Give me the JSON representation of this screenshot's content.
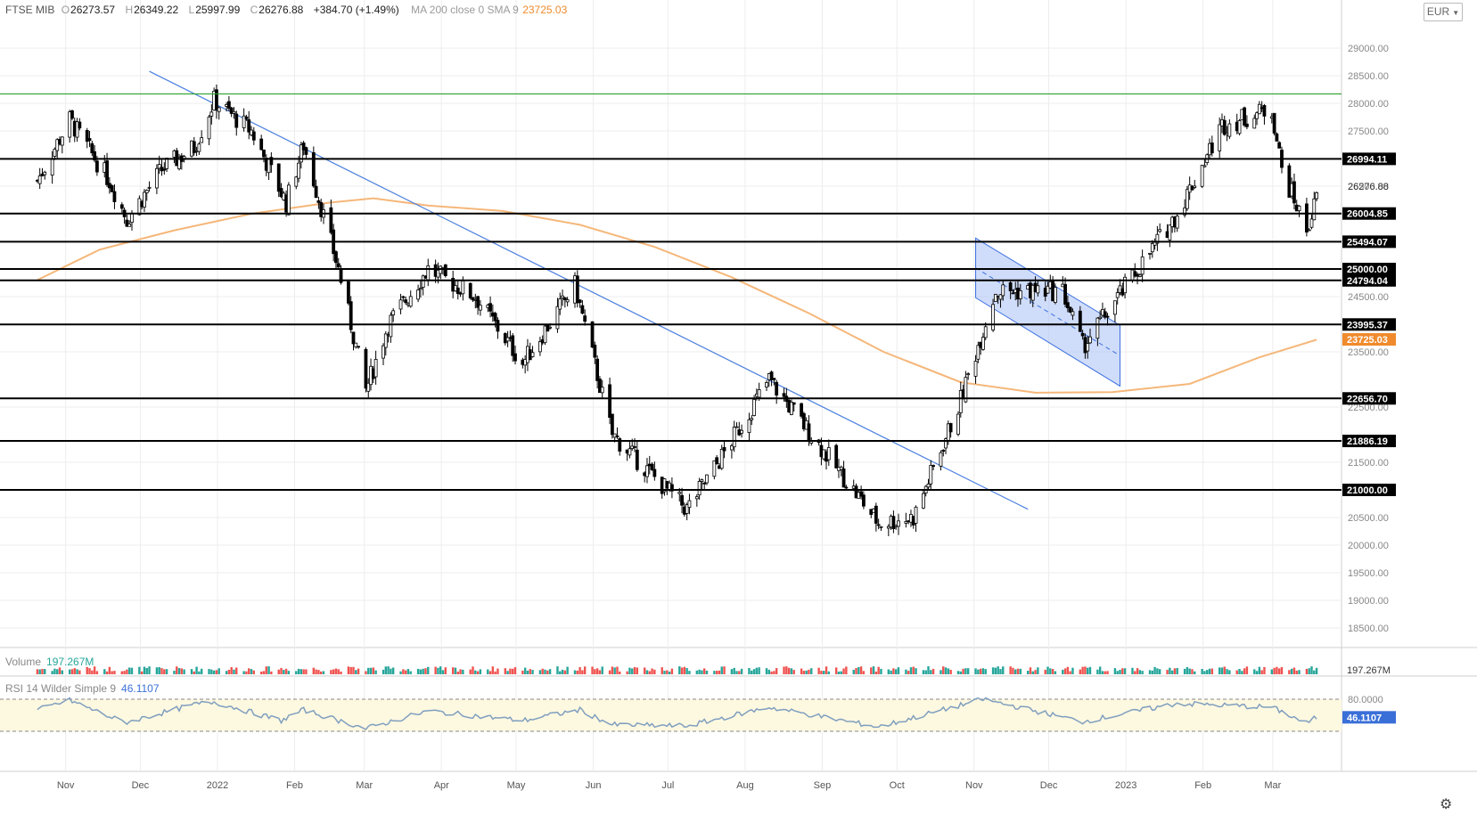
{
  "header": {
    "symbol": "FTSE MIB",
    "open_label": "O",
    "open": "26273.57",
    "high_label": "H",
    "high": "26349.22",
    "low_label": "L",
    "low": "25997.99",
    "close_label": "C",
    "close": "26276.88",
    "change": "+384.70 (+1.49%)",
    "ma_label": "MA 200 close 0 SMA 9",
    "ma_value": "23725.03"
  },
  "currency": "EUR",
  "volume_panel": {
    "label": "Volume",
    "value": "197.267M",
    "axis_badge": "197.267M"
  },
  "rsi_panel": {
    "label": "RSI 14 Wilder Simple 9",
    "value": "46.1107",
    "axis_badge": "46.1107",
    "ticks": [
      "80.0000"
    ]
  },
  "x_labels": [
    "Nov",
    "Dec",
    "2022",
    "Feb",
    "Mar",
    "Apr",
    "May",
    "Jun",
    "Jul",
    "Aug",
    "Sep",
    "Oct",
    "Nov",
    "Dec",
    "2023",
    "Feb",
    "Mar"
  ],
  "colors": {
    "up": "#26a69a",
    "down": "#ef5350",
    "candle": "#000000",
    "ma": "#f5b77a",
    "trendline": "#4a7fe0",
    "resistance": "#2ca02c",
    "channel": "#a9c1f5",
    "rsi_line": "#7f9fbf",
    "rsi_band": "#fdf8e0",
    "ma_badge": "#f08a2c"
  },
  "icons": {
    "settings": "gear-icon",
    "dropdown": "chevron-down-icon"
  },
  "chart_data": {
    "type": "candlestick",
    "title": "FTSE MIB",
    "y_ticks": [
      "29000.00",
      "28500.00",
      "28000.00",
      "27500.00",
      "26500.00",
      "25500.00",
      "24500.00",
      "23500.00",
      "22500.00",
      "21500.00",
      "21000.00",
      "20500.00",
      "20000.00",
      "19500.00",
      "19000.00",
      "18500.00"
    ],
    "ylim": [
      18300,
      29600
    ],
    "current_price": "26276.88",
    "horizontal_levels": [
      {
        "value": 28170,
        "color": "green",
        "label": null
      },
      {
        "value": 26994.11,
        "label": "26994.11"
      },
      {
        "value": 26004.85,
        "label": "26004.85"
      },
      {
        "value": 25494.07,
        "label": "25494.07"
      },
      {
        "value": 25000.0,
        "label": "25000.00"
      },
      {
        "value": 24794.04,
        "label": "24794.04"
      },
      {
        "value": 23995.37,
        "label": "23995.37"
      },
      {
        "value": 22656.7,
        "label": "22656.70"
      },
      {
        "value": 21886.19,
        "label": "21886.19"
      },
      {
        "value": 21000.0,
        "label": "21000.00"
      }
    ],
    "ma_badge": "23725.03",
    "trendline": [
      {
        "date": "2021-12-10",
        "value": 28580
      },
      {
        "date": "2022-11-28",
        "value": 20650
      }
    ],
    "channel": {
      "upper": [
        {
          "date": "2022-11-07",
          "value": 25560
        },
        {
          "date": "2023-01-04",
          "value": 23980
        }
      ],
      "lower": [
        {
          "date": "2022-11-07",
          "value": 24480
        },
        {
          "date": "2023-01-04",
          "value": 22880
        }
      ]
    },
    "ma200": [
      {
        "date": "2021-10-26",
        "value": 24800
      },
      {
        "date": "2021-11-20",
        "value": 25350
      },
      {
        "date": "2021-12-20",
        "value": 25700
      },
      {
        "date": "2022-01-20",
        "value": 26000
      },
      {
        "date": "2022-02-20",
        "value": 26200
      },
      {
        "date": "2022-03-10",
        "value": 26280
      },
      {
        "date": "2022-04-01",
        "value": 26150
      },
      {
        "date": "2022-05-01",
        "value": 26050
      },
      {
        "date": "2022-06-01",
        "value": 25800
      },
      {
        "date": "2022-07-01",
        "value": 25400
      },
      {
        "date": "2022-08-01",
        "value": 24850
      },
      {
        "date": "2022-09-01",
        "value": 24200
      },
      {
        "date": "2022-10-01",
        "value": 23500
      },
      {
        "date": "2022-11-01",
        "value": 22950
      },
      {
        "date": "2022-12-01",
        "value": 22760
      },
      {
        "date": "2023-01-01",
        "value": 22770
      },
      {
        "date": "2023-02-01",
        "value": 22920
      },
      {
        "date": "2023-03-01",
        "value": 23400
      },
      {
        "date": "2023-03-24",
        "value": 23720
      }
    ],
    "closes": [
      {
        "date": "2021-10-26",
        "value": 26600
      },
      {
        "date": "2021-11-08",
        "value": 27700
      },
      {
        "date": "2021-11-24",
        "value": 26600
      },
      {
        "date": "2021-12-01",
        "value": 25900
      },
      {
        "date": "2021-12-15",
        "value": 26800
      },
      {
        "date": "2021-12-28",
        "value": 27200
      },
      {
        "date": "2022-01-05",
        "value": 28050
      },
      {
        "date": "2022-01-20",
        "value": 27500
      },
      {
        "date": "2022-02-03",
        "value": 26200
      },
      {
        "date": "2022-02-10",
        "value": 27250
      },
      {
        "date": "2022-02-24",
        "value": 25000
      },
      {
        "date": "2022-03-07",
        "value": 22800
      },
      {
        "date": "2022-03-16",
        "value": 24000
      },
      {
        "date": "2022-04-01",
        "value": 25000
      },
      {
        "date": "2022-04-20",
        "value": 24500
      },
      {
        "date": "2022-05-09",
        "value": 23300
      },
      {
        "date": "2022-05-30",
        "value": 24700
      },
      {
        "date": "2022-06-14",
        "value": 22000
      },
      {
        "date": "2022-07-06",
        "value": 21000
      },
      {
        "date": "2022-07-14",
        "value": 20650
      },
      {
        "date": "2022-07-28",
        "value": 21600
      },
      {
        "date": "2022-08-16",
        "value": 23000
      },
      {
        "date": "2022-09-07",
        "value": 21700
      },
      {
        "date": "2022-09-29",
        "value": 20400
      },
      {
        "date": "2022-10-13",
        "value": 20500
      },
      {
        "date": "2022-10-31",
        "value": 22500
      },
      {
        "date": "2022-11-15",
        "value": 24600
      },
      {
        "date": "2022-12-12",
        "value": 24600
      },
      {
        "date": "2022-12-20",
        "value": 23600
      },
      {
        "date": "2023-01-05",
        "value": 24600
      },
      {
        "date": "2023-01-27",
        "value": 26000
      },
      {
        "date": "2023-02-14",
        "value": 27600
      },
      {
        "date": "2023-03-06",
        "value": 27900
      },
      {
        "date": "2023-03-10",
        "value": 26800
      },
      {
        "date": "2023-03-20",
        "value": 25700
      },
      {
        "date": "2023-03-24",
        "value": 26276.88
      }
    ],
    "rsi": [
      {
        "date": "2021-10-26",
        "value": 60
      },
      {
        "date": "2021-11-08",
        "value": 78
      },
      {
        "date": "2021-11-30",
        "value": 36
      },
      {
        "date": "2021-12-28",
        "value": 70
      },
      {
        "date": "2022-01-05",
        "value": 75
      },
      {
        "date": "2022-02-01",
        "value": 40
      },
      {
        "date": "2022-02-10",
        "value": 60
      },
      {
        "date": "2022-03-07",
        "value": 25
      },
      {
        "date": "2022-04-01",
        "value": 58
      },
      {
        "date": "2022-05-09",
        "value": 40
      },
      {
        "date": "2022-06-01",
        "value": 60
      },
      {
        "date": "2022-06-14",
        "value": 32
      },
      {
        "date": "2022-07-14",
        "value": 30
      },
      {
        "date": "2022-08-16",
        "value": 65
      },
      {
        "date": "2022-09-29",
        "value": 28
      },
      {
        "date": "2022-11-10",
        "value": 80
      },
      {
        "date": "2022-12-20",
        "value": 38
      },
      {
        "date": "2023-01-27",
        "value": 72
      },
      {
        "date": "2023-03-06",
        "value": 65
      },
      {
        "date": "2023-03-20",
        "value": 35
      },
      {
        "date": "2023-03-24",
        "value": 46.11
      }
    ]
  }
}
